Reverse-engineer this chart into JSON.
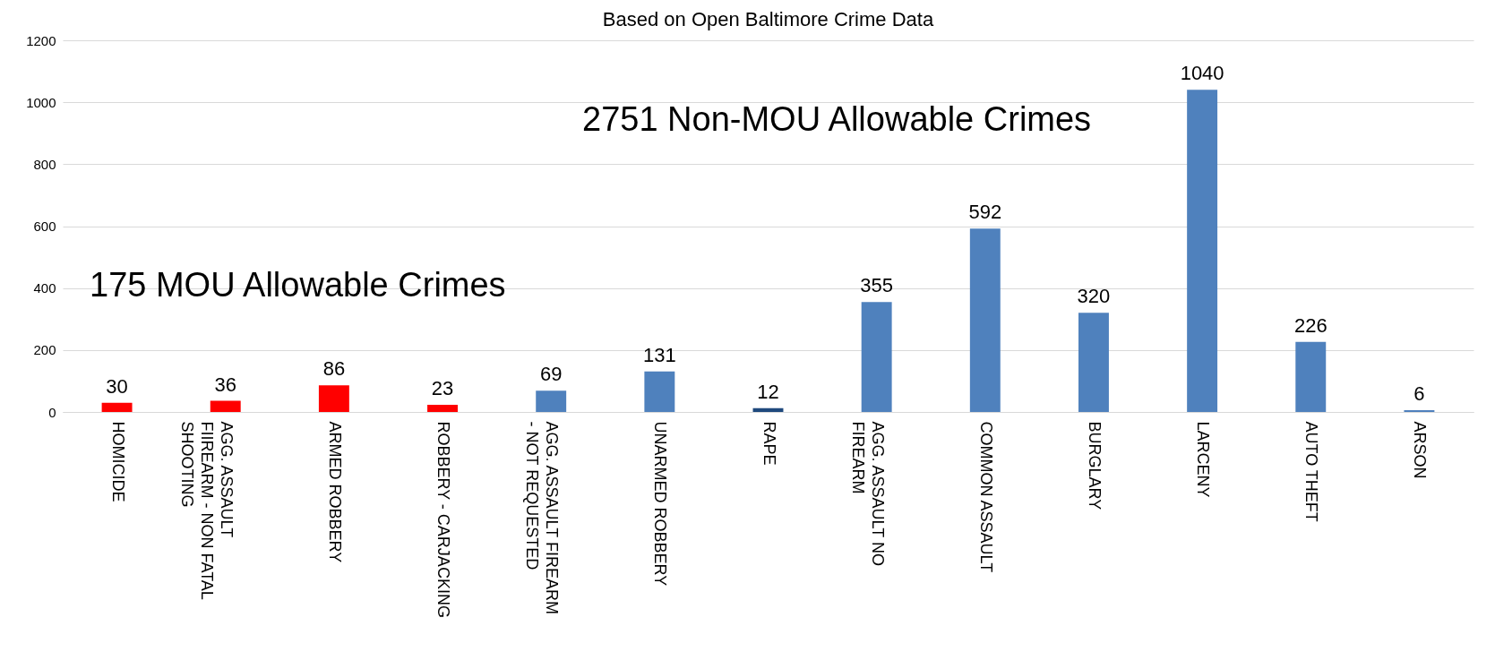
{
  "chart_data": {
    "type": "bar",
    "title": "Based on Open Baltimore Crime Data",
    "categories": [
      "HOMICIDE",
      "AGG. ASSAULT FIIREARM - NON FATAL SHOOTING",
      "ARMED ROBBERY",
      "ROBBERY - CARJACKING",
      "AGG. ASSAULT FIREARM - NOT REQUESTED",
      "UNARMED ROBBERY",
      "RAPE",
      "AGG. ASSAULT NO FIREARM",
      "COMMON ASSAULT",
      "BURGLARY",
      "LARCENY",
      "AUTO THEFT",
      "ARSON"
    ],
    "values": [
      30,
      36,
      86,
      23,
      69,
      131,
      12,
      355,
      592,
      320,
      1040,
      226,
      6
    ],
    "colors": [
      "#ff0000",
      "#ff0000",
      "#ff0000",
      "#ff0000",
      "#4f81bd",
      "#4f81bd",
      "#1f497d",
      "#4f81bd",
      "#4f81bd",
      "#4f81bd",
      "#4f81bd",
      "#4f81bd",
      "#4f81bd"
    ],
    "ylim": [
      0,
      1200
    ],
    "yticks": [
      0,
      200,
      400,
      600,
      800,
      1000,
      1200
    ],
    "grid": "y",
    "data_labels": true,
    "annotations": [
      "175 MOU Allowable Crimes",
      "2751 Non-MOU Allowable Crimes"
    ]
  }
}
